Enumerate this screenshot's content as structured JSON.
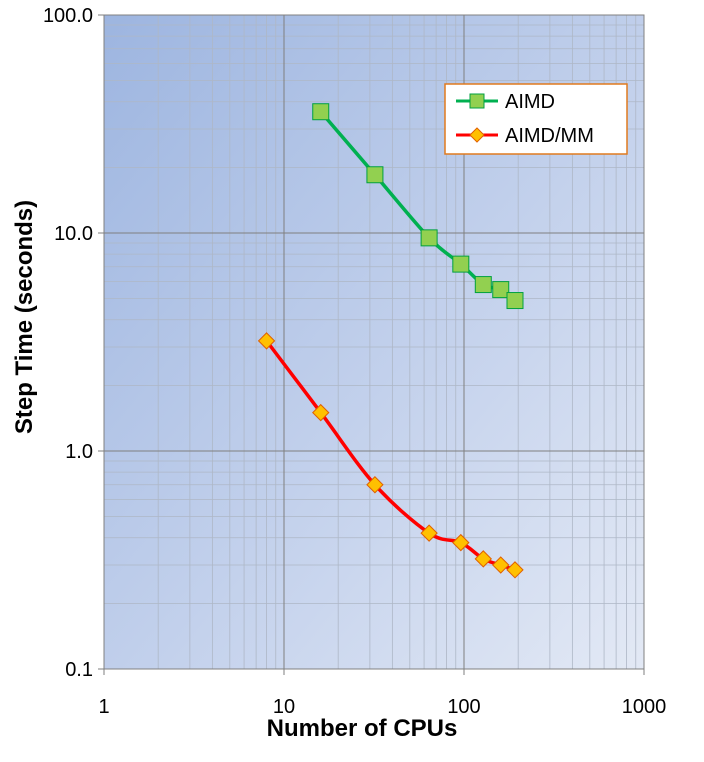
{
  "chart_data": {
    "type": "line",
    "xlabel": "Number of CPUs",
    "ylabel": "Step Time (seconds)",
    "x_scale": "log",
    "y_scale": "log",
    "xlim": [
      1,
      1000
    ],
    "ylim": [
      0.1,
      100
    ],
    "x_ticks": [
      "1",
      "10",
      "100",
      "1000"
    ],
    "y_ticks": [
      "0.1",
      "1.0",
      "10.0",
      "100.0"
    ],
    "grid": true,
    "legend_position": "top-right",
    "series": [
      {
        "name": "AIMD",
        "color": "#00b050",
        "marker": "square",
        "marker_color": "#92d050",
        "x": [
          16,
          32,
          64,
          96,
          128,
          160,
          192
        ],
        "y": [
          36,
          18.5,
          9.5,
          7.2,
          5.8,
          5.5,
          4.9
        ]
      },
      {
        "name": "AIMD/MM",
        "color": "#ff0000",
        "marker": "diamond",
        "marker_color": "#ffc000",
        "x": [
          8,
          16,
          32,
          64,
          96,
          128,
          160,
          192
        ],
        "y": [
          3.2,
          1.5,
          0.7,
          0.42,
          0.38,
          0.32,
          0.3,
          0.285
        ]
      }
    ]
  }
}
